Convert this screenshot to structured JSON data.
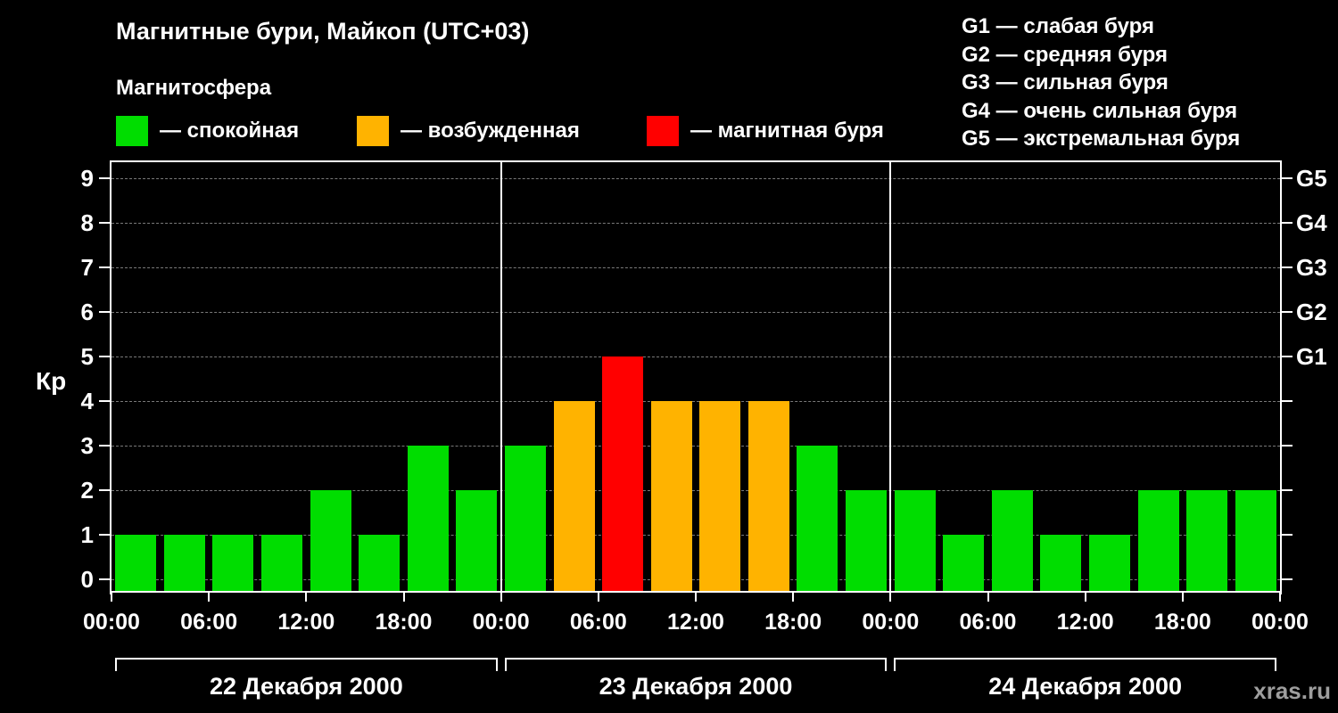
{
  "title": "Магнитные бури, Майкоп (UTC+03)",
  "subtitle": "Магнитосфера",
  "legend": [
    {
      "label": "— спокойная",
      "color": "#00dd00"
    },
    {
      "label": "— возбужденная",
      "color": "#ffb300"
    },
    {
      "label": "— магнитная буря",
      "color": "#ff0000"
    }
  ],
  "storm_scale": [
    "G1 — слабая буря",
    "G2 — средняя буря",
    "G3 — сильная буря",
    "G4 — очень сильная буря",
    "G5 — экстремальная буря"
  ],
  "watermark": "xras.ru",
  "chart_data": {
    "type": "bar",
    "title": "Магнитные бури, Майкоп (UTC+03)",
    "ylabel": "Кр",
    "ylim": [
      0,
      9.5
    ],
    "yticks": [
      0,
      1,
      2,
      3,
      4,
      5,
      6,
      7,
      8,
      9
    ],
    "right_axis": [
      {
        "value": 5,
        "label": "G1"
      },
      {
        "value": 6,
        "label": "G2"
      },
      {
        "value": 7,
        "label": "G3"
      },
      {
        "value": 8,
        "label": "G4"
      },
      {
        "value": 9,
        "label": "G5"
      }
    ],
    "bar_interval_hours": 3,
    "days": [
      {
        "date": "22 Декабря 2000",
        "values": [
          1,
          1,
          1,
          1,
          2,
          1,
          3,
          2
        ]
      },
      {
        "date": "23 Декабря 2000",
        "values": [
          3,
          4,
          5,
          4,
          4,
          4,
          3,
          2
        ]
      },
      {
        "date": "24 Декабря 2000",
        "values": [
          2,
          1,
          2,
          1,
          1,
          2,
          2,
          2
        ]
      }
    ],
    "time_ticks": [
      "00:00",
      "06:00",
      "12:00",
      "18:00",
      "00:00",
      "06:00",
      "12:00",
      "18:00",
      "00:00",
      "06:00",
      "12:00",
      "18:00",
      "00:00"
    ],
    "colors": {
      "quiet": "#00dd00",
      "active": "#ffb300",
      "storm": "#ff0000"
    },
    "color_thresholds": {
      "quiet_max_kp": 3,
      "storm_min_kp": 5
    },
    "grid": true,
    "legend_position": "top"
  }
}
